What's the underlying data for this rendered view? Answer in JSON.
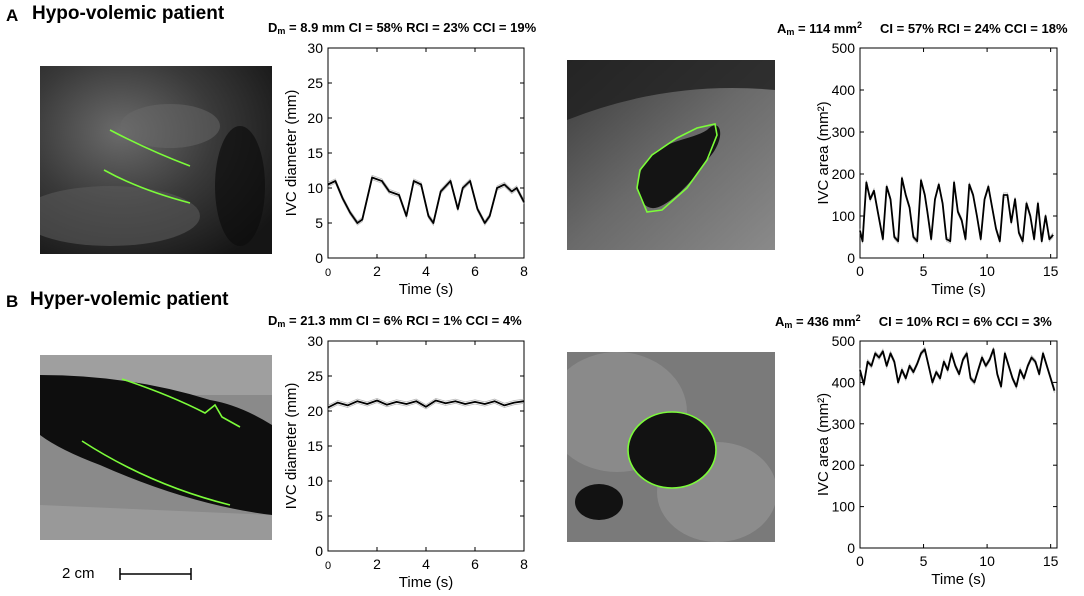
{
  "panels": [
    {
      "letter": "A",
      "title": "Hypo-volemic patient",
      "diam_stats": {
        "sym": "D",
        "sub": "m",
        "text": " = 8.9 mm CI = 58% RCI = 23% CCI = 19%"
      },
      "area_stats": {
        "sym": "A",
        "sub": "m",
        "pre": " = 114 mm",
        "sup": "2",
        "post": "     CI = 57% RCI = 24% CCI = 18%"
      }
    },
    {
      "letter": "B",
      "title": "Hyper-volemic patient",
      "diam_stats": {
        "sym": "D",
        "sub": "m",
        "text": " = 21.3 mm CI = 6% RCI = 1% CCI = 4%"
      },
      "area_stats": {
        "sym": "A",
        "sub": "m",
        "pre": " = 436 mm",
        "sup": "2",
        "post": "     CI = 10% RCI = 6% CCI = 3%"
      }
    }
  ],
  "scale_bar": {
    "label": "2 cm"
  },
  "colors": {
    "contour": "#7CFC3A",
    "trace": "#000000",
    "trace_raw": "#9a9a9a"
  },
  "chart_data": [
    {
      "id": "a-diameter",
      "type": "line",
      "title": "",
      "xlabel": "Time (s)",
      "ylabel": "IVC diameter (mm)",
      "xlim": [
        0,
        8
      ],
      "ylim": [
        0,
        30
      ],
      "xticks": [
        0,
        2,
        4,
        6,
        8
      ],
      "yticks": [
        0,
        5,
        10,
        15,
        20,
        25,
        30
      ],
      "x": [
        0,
        0.3,
        0.6,
        0.9,
        1.2,
        1.4,
        1.8,
        2.2,
        2.5,
        2.9,
        3.2,
        3.5,
        3.8,
        4.1,
        4.3,
        4.6,
        5.0,
        5.3,
        5.5,
        5.8,
        6.1,
        6.4,
        6.6,
        6.9,
        7.2,
        7.5,
        7.7,
        8.0
      ],
      "series": [
        {
          "values": [
            10.5,
            11,
            8.5,
            6.5,
            5,
            5.5,
            11.5,
            11,
            9.5,
            9,
            6,
            11,
            10.5,
            6,
            5,
            9.5,
            11,
            7,
            10,
            11,
            7,
            5,
            6,
            10,
            10.5,
            9.5,
            10,
            8
          ]
        }
      ]
    },
    {
      "id": "a-area",
      "type": "line",
      "title": "",
      "xlabel": "Time (s)",
      "ylabel": "IVC area (mm²)",
      "xlim": [
        0,
        15.5
      ],
      "ylim": [
        0,
        500
      ],
      "xticks": [
        0,
        5,
        10,
        15
      ],
      "yticks": [
        0,
        100,
        200,
        300,
        400,
        500
      ],
      "x": [
        0,
        0.2,
        0.5,
        0.8,
        1.1,
        1.4,
        1.8,
        2.1,
        2.4,
        2.7,
        3.0,
        3.3,
        3.6,
        3.9,
        4.2,
        4.5,
        4.8,
        5.1,
        5.3,
        5.6,
        5.9,
        6.2,
        6.5,
        6.8,
        7.1,
        7.4,
        7.7,
        8.0,
        8.3,
        8.6,
        8.9,
        9.2,
        9.5,
        9.8,
        10.1,
        10.4,
        10.7,
        11.0,
        11.3,
        11.6,
        11.9,
        12.2,
        12.5,
        12.8,
        13.1,
        13.4,
        13.7,
        14.0,
        14.3,
        14.6,
        14.9,
        15.2
      ],
      "series": [
        {
          "values": [
            65,
            40,
            180,
            140,
            160,
            110,
            45,
            170,
            140,
            50,
            40,
            190,
            150,
            120,
            50,
            40,
            185,
            150,
            110,
            45,
            140,
            175,
            130,
            45,
            40,
            180,
            110,
            90,
            45,
            175,
            150,
            100,
            45,
            140,
            170,
            120,
            70,
            40,
            150,
            150,
            85,
            140,
            60,
            40,
            130,
            100,
            45,
            130,
            40,
            100,
            45,
            55
          ]
        }
      ]
    },
    {
      "id": "b-diameter",
      "type": "line",
      "title": "",
      "xlabel": "Time (s)",
      "ylabel": "IVC diameter (mm)",
      "xlim": [
        0,
        8
      ],
      "ylim": [
        0,
        30
      ],
      "xticks": [
        0,
        2,
        4,
        6,
        8
      ],
      "yticks": [
        0,
        5,
        10,
        15,
        20,
        25,
        30
      ],
      "x": [
        0,
        0.4,
        0.8,
        1.2,
        1.6,
        2.0,
        2.4,
        2.8,
        3.2,
        3.6,
        4.0,
        4.4,
        4.8,
        5.2,
        5.6,
        6.0,
        6.4,
        6.8,
        7.2,
        7.6,
        8.0
      ],
      "series": [
        {
          "values": [
            20.5,
            21.2,
            20.8,
            21.4,
            21,
            21.5,
            20.9,
            21.3,
            21,
            21.4,
            20.6,
            21.5,
            21.1,
            21.4,
            21,
            21.3,
            21,
            21.4,
            20.8,
            21.2,
            21.4
          ]
        }
      ]
    },
    {
      "id": "b-area",
      "type": "line",
      "title": "",
      "xlabel": "Time (s)",
      "ylabel": "IVC area (mm²)",
      "xlim": [
        0,
        15.5
      ],
      "ylim": [
        0,
        500
      ],
      "xticks": [
        0,
        5,
        10,
        15
      ],
      "yticks": [
        0,
        100,
        200,
        300,
        400,
        500
      ],
      "x": [
        0,
        0.3,
        0.6,
        0.9,
        1.2,
        1.5,
        1.8,
        2.1,
        2.4,
        2.7,
        3.0,
        3.3,
        3.6,
        3.9,
        4.2,
        4.5,
        4.8,
        5.1,
        5.4,
        5.7,
        6.0,
        6.3,
        6.6,
        6.9,
        7.2,
        7.5,
        7.8,
        8.1,
        8.4,
        8.7,
        9.0,
        9.3,
        9.6,
        9.9,
        10.2,
        10.5,
        10.8,
        11.1,
        11.4,
        11.7,
        12.0,
        12.3,
        12.6,
        12.9,
        13.2,
        13.5,
        13.8,
        14.1,
        14.4,
        14.7,
        15.0,
        15.3
      ],
      "series": [
        {
          "values": [
            430,
            395,
            450,
            440,
            470,
            460,
            475,
            440,
            470,
            450,
            400,
            430,
            410,
            440,
            425,
            445,
            470,
            480,
            440,
            400,
            425,
            410,
            450,
            430,
            470,
            440,
            420,
            455,
            470,
            410,
            400,
            430,
            460,
            440,
            455,
            480,
            420,
            390,
            470,
            440,
            410,
            390,
            430,
            410,
            440,
            460,
            450,
            420,
            470,
            440,
            410,
            380
          ]
        }
      ]
    }
  ]
}
